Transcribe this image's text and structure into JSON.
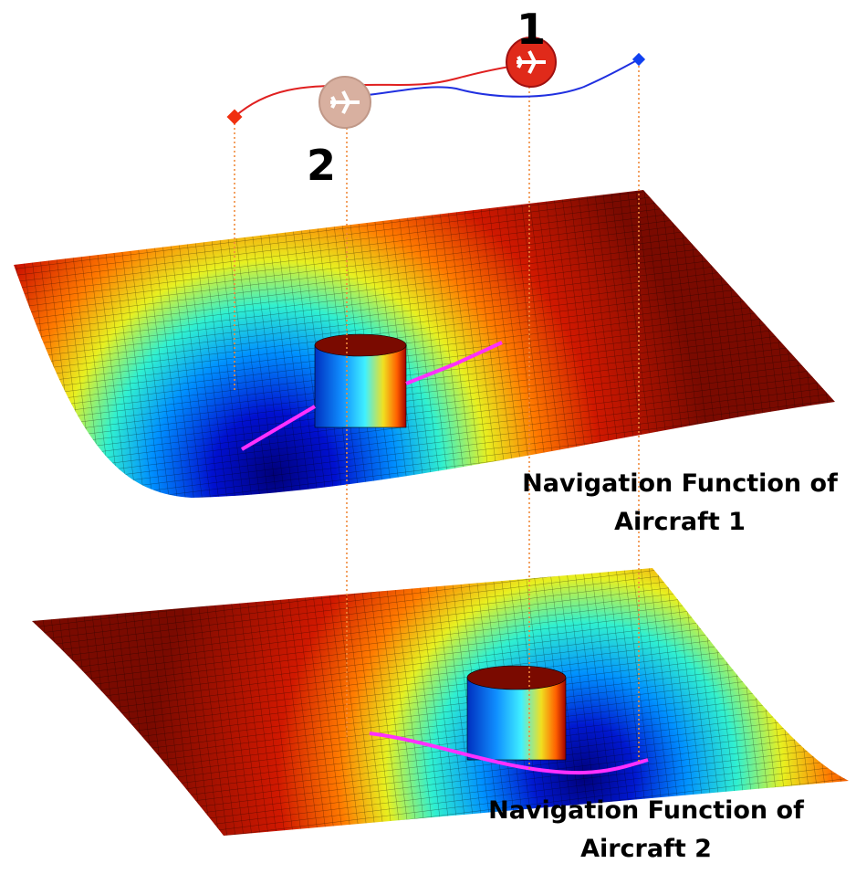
{
  "markers": {
    "aircraft_1": "1",
    "aircraft_2": "2"
  },
  "panels": [
    {
      "caption": [
        "Navigation Function of",
        "Aircraft 1"
      ]
    },
    {
      "caption": [
        "Navigation Function of",
        "Aircraft 2"
      ]
    }
  ]
}
